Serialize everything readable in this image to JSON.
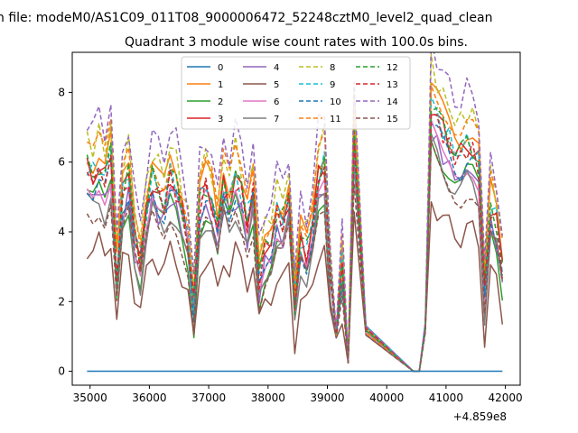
{
  "chart_data": {
    "type": "line",
    "suptitle": "n file: modeM0/AS1C09_011T08_9000006472_52248cztM0_level2_quad_clean",
    "title": "Quadrant 3 module wise count rates with 100.0s bins.",
    "xlabel": "",
    "ylabel": "",
    "x_offset_label": "+4.859e8",
    "xlim": [
      34700,
      42250
    ],
    "ylim": [
      -0.4,
      9.15
    ],
    "x_ticks": [
      35000,
      36000,
      37000,
      38000,
      39000,
      40000,
      41000,
      42000
    ],
    "x_tick_labels": [
      "35000",
      "36000",
      "37000",
      "38000",
      "39000",
      "40000",
      "41000",
      "42000"
    ],
    "y_ticks": [
      0,
      2,
      4,
      6,
      8
    ],
    "y_tick_labels": [
      "0",
      "2",
      "4",
      "6",
      "8"
    ],
    "legend_position": "upper-center",
    "series": [
      {
        "name": "0",
        "color": "#1f77b4",
        "dash": "solid",
        "shape": "zero"
      },
      {
        "name": "1",
        "color": "#ff7f0e",
        "dash": "solid",
        "shape": "scaled",
        "scale": 1.05,
        "shift": 0.15
      },
      {
        "name": "2",
        "color": "#2ca02c",
        "dash": "solid",
        "shape": "scaled",
        "scale": 0.95,
        "shift": -0.5
      },
      {
        "name": "3",
        "color": "#d62728",
        "dash": "solid",
        "shape": "scaled",
        "scale": 1.0,
        "shift": 0.0
      },
      {
        "name": "4",
        "color": "#9467bd",
        "dash": "solid",
        "shape": "scaled",
        "scale": 0.92,
        "shift": -0.2
      },
      {
        "name": "5",
        "color": "#8c564b",
        "dash": "solid",
        "shape": "scaled",
        "scale": 0.72,
        "shift": -0.6
      },
      {
        "name": "6",
        "color": "#e377c2",
        "dash": "solid",
        "shape": "scaled",
        "scale": 0.9,
        "shift": 0.1
      },
      {
        "name": "7",
        "color": "#7f7f7f",
        "dash": "solid",
        "shape": "scaled",
        "scale": 0.88,
        "shift": -0.3
      },
      {
        "name": "8",
        "color": "#bcbd22",
        "dash": "dashed",
        "shape": "scaled",
        "scale": 1.1,
        "shift": 0.3
      },
      {
        "name": "9",
        "color": "#17becf",
        "dash": "dashed",
        "shape": "scaled",
        "scale": 1.0,
        "shift": 0.05
      },
      {
        "name": "10",
        "color": "#1f77b4",
        "dash": "dashed",
        "shape": "scaled",
        "scale": 0.95,
        "shift": -0.1
      },
      {
        "name": "11",
        "color": "#ff7f0e",
        "dash": "dashed",
        "shape": "scaled",
        "scale": 1.08,
        "shift": 0.2
      },
      {
        "name": "12",
        "color": "#2ca02c",
        "dash": "dashed",
        "shape": "scaled",
        "scale": 1.02,
        "shift": -0.05
      },
      {
        "name": "13",
        "color": "#d62728",
        "dash": "dashed",
        "shape": "scaled",
        "scale": 0.98,
        "shift": 0.0
      },
      {
        "name": "14",
        "color": "#9467bd",
        "dash": "dashed",
        "shape": "scaled",
        "scale": 1.18,
        "shift": 0.4
      },
      {
        "name": "15",
        "color": "#8c564b",
        "dash": "dashed",
        "shape": "scaled",
        "scale": 0.85,
        "shift": -0.25
      }
    ],
    "x": [
      34950,
      35050,
      35150,
      35250,
      35350,
      35450,
      35550,
      35650,
      35750,
      35850,
      35950,
      36050,
      36150,
      36250,
      36350,
      36450,
      36550,
      36650,
      36750,
      36850,
      36950,
      37050,
      37150,
      37250,
      37350,
      37450,
      37550,
      37650,
      37750,
      37850,
      37950,
      38050,
      38150,
      38250,
      38350,
      38450,
      38550,
      38650,
      38750,
      38850,
      38950,
      39050,
      39150,
      39250,
      39350,
      39450,
      39650,
      40450,
      40550,
      40650,
      40750,
      40850,
      40950,
      41050,
      41150,
      41250,
      41350,
      41450,
      41550,
      41650,
      41750,
      41850,
      41950
    ],
    "base_shape": [
      5.8,
      5.6,
      5.9,
      5.5,
      6.2,
      2.8,
      5.1,
      5.6,
      4.0,
      3.2,
      4.6,
      5.5,
      5.1,
      4.9,
      5.6,
      5.3,
      4.6,
      3.8,
      1.9,
      4.9,
      5.3,
      5.0,
      3.9,
      5.4,
      4.9,
      5.6,
      5.1,
      4.4,
      5.2,
      2.7,
      3.5,
      3.9,
      4.5,
      4.3,
      5.0,
      2.0,
      3.8,
      3.4,
      4.2,
      5.6,
      5.9,
      2.8,
      1.2,
      3.2,
      0.3,
      6.7,
      1.3,
      0.0,
      0.0,
      1.4,
      7.7,
      7.3,
      6.9,
      6.6,
      6.3,
      6.2,
      6.5,
      6.4,
      6.0,
      2.2,
      4.8,
      4.3,
      3.0
    ]
  }
}
